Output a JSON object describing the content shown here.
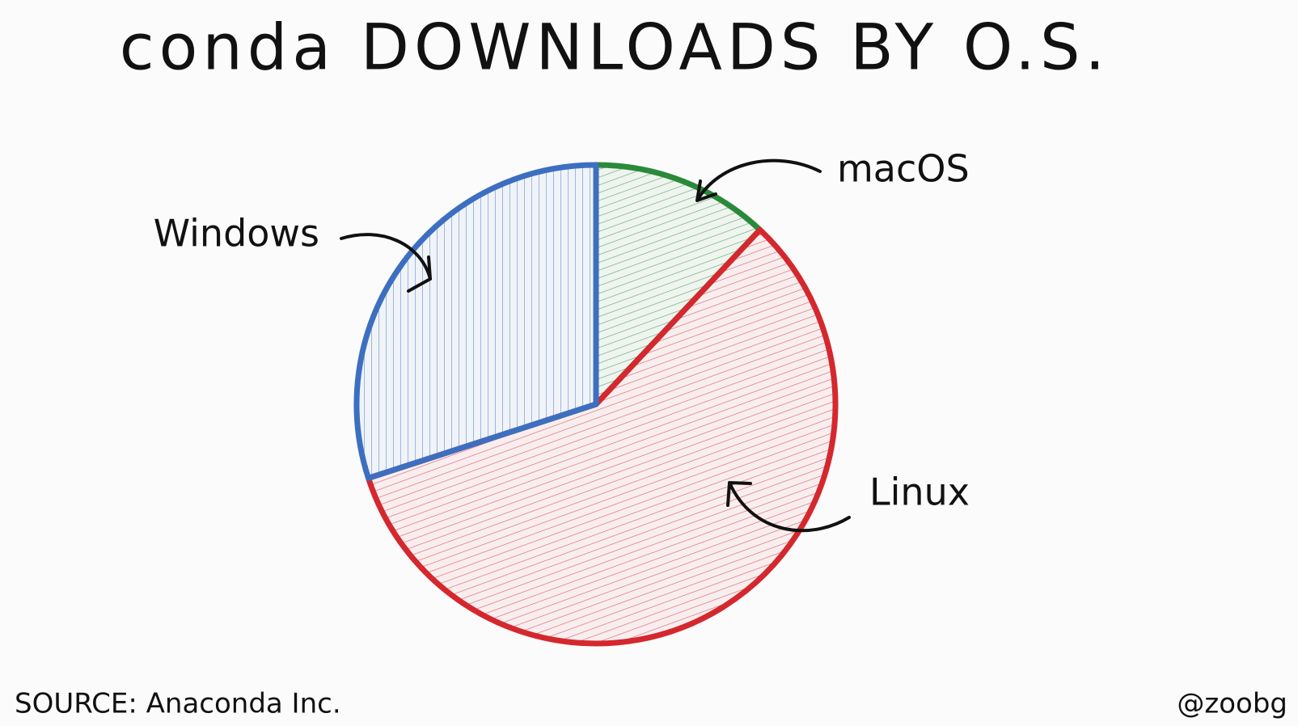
{
  "chart_data": {
    "type": "pie",
    "title": "conda DOWNLOADS BY O.S.",
    "categories": [
      "macOS",
      "Linux",
      "Windows"
    ],
    "values": [
      12,
      58,
      30
    ],
    "colors": [
      "#2a8a3a",
      "#d4282e",
      "#3d6fc0"
    ],
    "source": "SOURCE: Anaconda Inc.",
    "credit": "@zoobg"
  }
}
